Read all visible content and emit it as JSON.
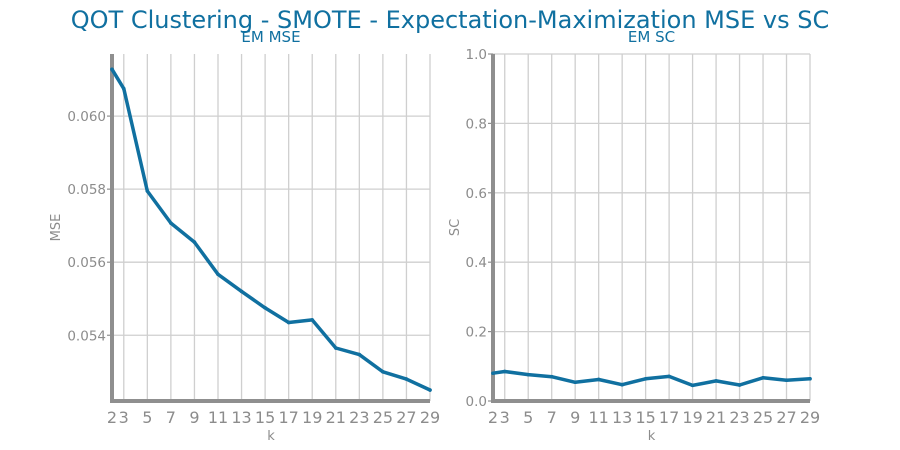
{
  "title": "QOT Clustering - SMOTE - Expectation-Maximization MSE vs SC",
  "colors": {
    "line": "#1070a0",
    "title": "#1070a0",
    "axis": "#8f8f8f",
    "grid": "#cfcfcf",
    "tick_text": "#8c8c8c"
  },
  "chart_data": [
    {
      "type": "line",
      "title": "EM MSE",
      "xlabel": "k",
      "ylabel": "MSE",
      "x": [
        2,
        3,
        5,
        7,
        9,
        11,
        13,
        15,
        17,
        19,
        21,
        23,
        25,
        27,
        29
      ],
      "xticks": [
        2,
        3,
        5,
        7,
        9,
        11,
        13,
        15,
        17,
        19,
        21,
        23,
        25,
        27,
        29
      ],
      "xlim": [
        2,
        29
      ],
      "series": [
        {
          "values": [
            0.06128,
            0.06075,
            0.05795,
            0.05707,
            0.05655,
            0.05567,
            0.0552,
            0.05475,
            0.05435,
            0.05442,
            0.05365,
            0.05347,
            0.053,
            0.0528,
            0.0525
          ]
        }
      ],
      "ylim": [
        0.0522,
        0.0617
      ],
      "yticks": [
        0.054,
        0.056,
        0.058,
        0.06
      ],
      "ytick_labels": [
        "0.054",
        "0.056",
        "0.058",
        "0.060"
      ],
      "grid": true
    },
    {
      "type": "line",
      "title": "EM SC",
      "xlabel": "k",
      "ylabel": "SC",
      "x": [
        2,
        3,
        5,
        7,
        9,
        11,
        13,
        15,
        17,
        19,
        21,
        23,
        25,
        27,
        29
      ],
      "xticks": [
        2,
        3,
        5,
        7,
        9,
        11,
        13,
        15,
        17,
        19,
        21,
        23,
        25,
        27,
        29
      ],
      "xlim": [
        2,
        29
      ],
      "series": [
        {
          "values": [
            0.08,
            0.085,
            0.076,
            0.07,
            0.054,
            0.062,
            0.047,
            0.064,
            0.071,
            0.045,
            0.058,
            0.046,
            0.067,
            0.06,
            0.064
          ]
        }
      ],
      "ylim": [
        0.0,
        1.0
      ],
      "yticks": [
        0.0,
        0.2,
        0.4,
        0.6,
        0.8,
        1.0
      ],
      "ytick_labels": [
        "0.0",
        "0.2",
        "0.4",
        "0.6",
        "0.8",
        "1.0"
      ],
      "grid": true
    }
  ]
}
